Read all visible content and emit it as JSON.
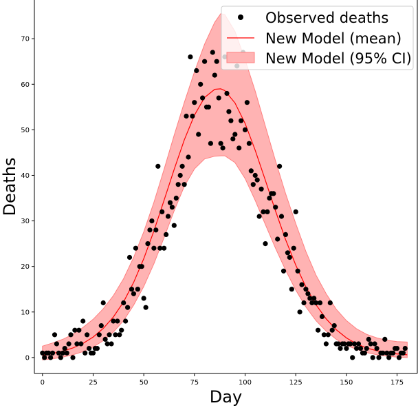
{
  "chart_data": {
    "type": "scatter",
    "title": "",
    "xlabel": "Day",
    "ylabel": "Deaths",
    "xlim": [
      -4,
      185
    ],
    "ylim": [
      -3.5,
      78.5
    ],
    "xticks": [
      0,
      25,
      50,
      75,
      100,
      125,
      150,
      175
    ],
    "yticks": [
      0,
      10,
      20,
      30,
      40,
      50,
      60,
      70
    ],
    "grid": false,
    "legend_position": "top-right",
    "colors": {
      "observed": "#000000",
      "mean": "#ff0000",
      "ci": "#ffb3b3",
      "ci_edge": "#ff8080"
    },
    "series": [
      {
        "name": "Observed deaths",
        "kind": "scatter",
        "points": [
          [
            0,
            1
          ],
          [
            1,
            0
          ],
          [
            2,
            1
          ],
          [
            3,
            1
          ],
          [
            4,
            0
          ],
          [
            5,
            1
          ],
          [
            6,
            5
          ],
          [
            7,
            3
          ],
          [
            8,
            1
          ],
          [
            9,
            0
          ],
          [
            10,
            1
          ],
          [
            11,
            2
          ],
          [
            12,
            1
          ],
          [
            13,
            3
          ],
          [
            14,
            5
          ],
          [
            15,
            0
          ],
          [
            16,
            6
          ],
          [
            17,
            3
          ],
          [
            18,
            6
          ],
          [
            19,
            3
          ],
          [
            20,
            8
          ],
          [
            21,
            1
          ],
          [
            22,
            5
          ],
          [
            23,
            2
          ],
          [
            24,
            1
          ],
          [
            25,
            1
          ],
          [
            26,
            2
          ],
          [
            27,
            2
          ],
          [
            28,
            5
          ],
          [
            29,
            7
          ],
          [
            30,
            12
          ],
          [
            31,
            4
          ],
          [
            32,
            3
          ],
          [
            33,
            5
          ],
          [
            34,
            3
          ],
          [
            35,
            8
          ],
          [
            36,
            5
          ],
          [
            37,
            8
          ],
          [
            38,
            5
          ],
          [
            39,
            6
          ],
          [
            40,
            12
          ],
          [
            41,
            8
          ],
          [
            42,
            11
          ],
          [
            43,
            22
          ],
          [
            44,
            15
          ],
          [
            45,
            14
          ],
          [
            46,
            24
          ],
          [
            47,
            15
          ],
          [
            48,
            20
          ],
          [
            49,
            20
          ],
          [
            50,
            13
          ],
          [
            51,
            11
          ],
          [
            52,
            25
          ],
          [
            53,
            28
          ],
          [
            54,
            30
          ],
          [
            55,
            24
          ],
          [
            56,
            28
          ],
          [
            57,
            42
          ],
          [
            58,
            24
          ],
          [
            59,
            32
          ],
          [
            60,
            24
          ],
          [
            61,
            27
          ],
          [
            62,
            31
          ],
          [
            63,
            34
          ],
          [
            64,
            33
          ],
          [
            65,
            29
          ],
          [
            66,
            35
          ],
          [
            67,
            38
          ],
          [
            68,
            40
          ],
          [
            69,
            42
          ],
          [
            70,
            38
          ],
          [
            71,
            53
          ],
          [
            72,
            44
          ],
          [
            73,
            66
          ],
          [
            74,
            53
          ],
          [
            75,
            56
          ],
          [
            76,
            63
          ],
          [
            77,
            49
          ],
          [
            78,
            60
          ],
          [
            79,
            57
          ],
          [
            80,
            65
          ],
          [
            81,
            55
          ],
          [
            82,
            55
          ],
          [
            83,
            47
          ],
          [
            84,
            67
          ],
          [
            85,
            62
          ],
          [
            86,
            65
          ],
          [
            87,
            57
          ],
          [
            88,
            47
          ],
          [
            89,
            46
          ],
          [
            90,
            66
          ],
          [
            91,
            58
          ],
          [
            92,
            54
          ],
          [
            93,
            52
          ],
          [
            94,
            48
          ],
          [
            95,
            49
          ],
          [
            96,
            64
          ],
          [
            97,
            46
          ],
          [
            98,
            52
          ],
          [
            99,
            67
          ],
          [
            100,
            50
          ],
          [
            101,
            56
          ],
          [
            102,
            47
          ],
          [
            103,
            41
          ],
          [
            104,
            38
          ],
          [
            105,
            40
          ],
          [
            106,
            39
          ],
          [
            107,
            31
          ],
          [
            108,
            37
          ],
          [
            109,
            32
          ],
          [
            110,
            25
          ],
          [
            111,
            32
          ],
          [
            112,
            35
          ],
          [
            113,
            36
          ],
          [
            114,
            36
          ],
          [
            115,
            33
          ],
          [
            116,
            26
          ],
          [
            117,
            42
          ],
          [
            118,
            31
          ],
          [
            119,
            19
          ],
          [
            120,
            27
          ],
          [
            121,
            23
          ],
          [
            122,
            22
          ],
          [
            123,
            15
          ],
          [
            124,
            24
          ],
          [
            125,
            32
          ],
          [
            126,
            19
          ],
          [
            127,
            10
          ],
          [
            128,
            16
          ],
          [
            129,
            12
          ],
          [
            130,
            15
          ],
          [
            131,
            14
          ],
          [
            132,
            13
          ],
          [
            133,
            12
          ],
          [
            134,
            13
          ],
          [
            135,
            12
          ],
          [
            136,
            6
          ],
          [
            137,
            12
          ],
          [
            138,
            9
          ],
          [
            139,
            5
          ],
          [
            140,
            3
          ],
          [
            141,
            5
          ],
          [
            142,
            12
          ],
          [
            143,
            6
          ],
          [
            144,
            7
          ],
          [
            145,
            3
          ],
          [
            146,
            3
          ],
          [
            147,
            2
          ],
          [
            148,
            3
          ],
          [
            149,
            3
          ],
          [
            150,
            2
          ],
          [
            151,
            3
          ],
          [
            152,
            3
          ],
          [
            153,
            0
          ],
          [
            154,
            3
          ],
          [
            155,
            2
          ],
          [
            156,
            3
          ],
          [
            157,
            2
          ],
          [
            158,
            1
          ],
          [
            159,
            1
          ],
          [
            160,
            2
          ],
          [
            161,
            4
          ],
          [
            162,
            3
          ],
          [
            163,
            0
          ],
          [
            164,
            3
          ],
          [
            165,
            2
          ],
          [
            166,
            0
          ],
          [
            167,
            1
          ],
          [
            168,
            1
          ],
          [
            169,
            4
          ],
          [
            170,
            1
          ],
          [
            171,
            0
          ],
          [
            172,
            1
          ],
          [
            173,
            1
          ],
          [
            174,
            2
          ],
          [
            175,
            2
          ],
          [
            176,
            0
          ],
          [
            177,
            1
          ],
          [
            178,
            1
          ],
          [
            179,
            2
          ]
        ]
      },
      {
        "name": "New Model (mean)",
        "kind": "line",
        "points": [
          [
            0,
            0.5
          ],
          [
            5,
            0.9
          ],
          [
            10,
            1.4
          ],
          [
            15,
            2.1
          ],
          [
            20,
            3.1
          ],
          [
            25,
            4.5
          ],
          [
            30,
            6.4
          ],
          [
            35,
            8.9
          ],
          [
            40,
            12.2
          ],
          [
            45,
            16.5
          ],
          [
            50,
            21.7
          ],
          [
            55,
            27.8
          ],
          [
            60,
            34.5
          ],
          [
            65,
            41.3
          ],
          [
            70,
            47.8
          ],
          [
            75,
            53.2
          ],
          [
            80,
            57.1
          ],
          [
            85,
            58.9
          ],
          [
            88,
            59
          ],
          [
            90,
            58.6
          ],
          [
            95,
            55.9
          ],
          [
            100,
            51.4
          ],
          [
            105,
            45.5
          ],
          [
            110,
            38.9
          ],
          [
            115,
            32.2
          ],
          [
            120,
            25.9
          ],
          [
            125,
            20.3
          ],
          [
            130,
            15.5
          ],
          [
            135,
            11.6
          ],
          [
            140,
            8.5
          ],
          [
            145,
            6.1
          ],
          [
            150,
            4.3
          ],
          [
            155,
            3.0
          ],
          [
            160,
            2.1
          ],
          [
            165,
            1.5
          ],
          [
            170,
            1.1
          ],
          [
            175,
            0.8
          ],
          [
            180,
            0.6
          ]
        ]
      },
      {
        "name": "New Model (95% CI)",
        "kind": "band",
        "points": [
          [
            0,
            -0.5,
            2.5
          ],
          [
            5,
            -0.3,
            3.2
          ],
          [
            10,
            0.1,
            4.0
          ],
          [
            15,
            0.6,
            5.1
          ],
          [
            20,
            1.3,
            6.6
          ],
          [
            25,
            2.3,
            8.4
          ],
          [
            30,
            3.7,
            10.7
          ],
          [
            35,
            5.6,
            13.6
          ],
          [
            40,
            8.1,
            17.3
          ],
          [
            45,
            11.5,
            22.0
          ],
          [
            50,
            15.6,
            27.6
          ],
          [
            55,
            20.6,
            34.1
          ],
          [
            60,
            26.3,
            41.3
          ],
          [
            65,
            32.2,
            48.8
          ],
          [
            70,
            37.6,
            56.0
          ],
          [
            75,
            41.4,
            62.7
          ],
          [
            80,
            43.6,
            68.8
          ],
          [
            85,
            44.2,
            73.6
          ],
          [
            88,
            44.3,
            75.5
          ],
          [
            90,
            44.3,
            75.3
          ],
          [
            95,
            42.8,
            71.6
          ],
          [
            100,
            39.3,
            65.4
          ],
          [
            105,
            34.5,
            58.5
          ],
          [
            110,
            29.2,
            50.8
          ],
          [
            115,
            24.0,
            43.2
          ],
          [
            120,
            19.2,
            36.0
          ],
          [
            125,
            14.8,
            29.4
          ],
          [
            130,
            11.1,
            23.3
          ],
          [
            135,
            8.1,
            18.1
          ],
          [
            140,
            5.8,
            14.0
          ],
          [
            145,
            4.0,
            10.6
          ],
          [
            150,
            2.7,
            8.1
          ],
          [
            155,
            1.8,
            6.3
          ],
          [
            160,
            1.1,
            5.1
          ],
          [
            165,
            0.6,
            4.3
          ],
          [
            170,
            0.3,
            3.8
          ],
          [
            175,
            0.1,
            3.5
          ],
          [
            180,
            0.0,
            3.4
          ]
        ]
      }
    ]
  }
}
